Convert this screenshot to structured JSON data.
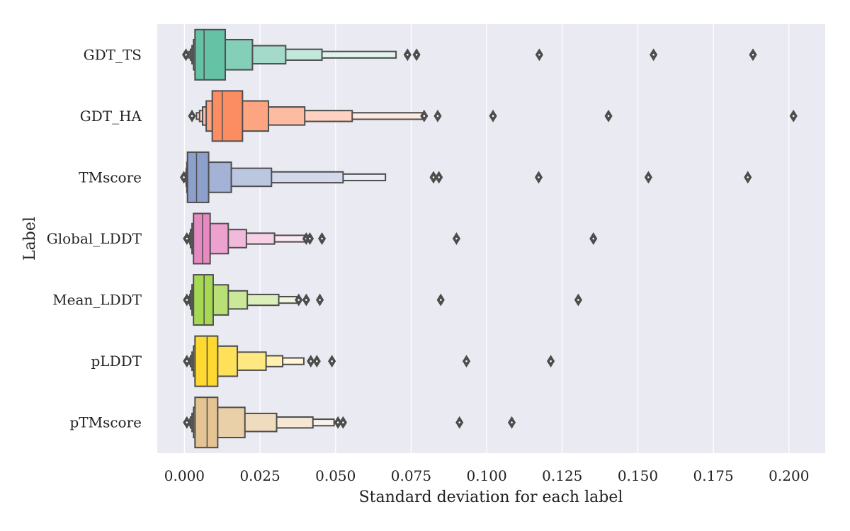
{
  "chart_data": {
    "type": "boxenplot",
    "xlabel": "Standard deviation for each label",
    "ylabel": "Label",
    "xlim": [
      -0.009,
      0.212
    ],
    "x_ticks": [
      {
        "value": 0.0,
        "label": "0.000"
      },
      {
        "value": 0.025,
        "label": "0.025"
      },
      {
        "value": 0.05,
        "label": "0.050"
      },
      {
        "value": 0.075,
        "label": "0.075"
      },
      {
        "value": 0.1,
        "label": "0.100"
      },
      {
        "value": 0.125,
        "label": "0.125"
      },
      {
        "value": 0.15,
        "label": "0.150"
      },
      {
        "value": 0.175,
        "label": "0.175"
      },
      {
        "value": 0.2,
        "label": "0.200"
      }
    ],
    "grid": true,
    "colors": {
      "background": "#eaeaf2",
      "grid": "#ffffff",
      "edge": "#4d4d4d",
      "swarm": "#ffffff"
    },
    "categories": [
      {
        "label": "GDT_TS",
        "color": "#66c2a5",
        "median": 0.0065,
        "levels": [
          {
            "lo": 0.0035,
            "hi": 0.0135
          },
          {
            "lo": 0.003,
            "hi": 0.0225
          },
          {
            "lo": 0.0025,
            "hi": 0.0335
          },
          {
            "lo": 0.002,
            "hi": 0.0455
          },
          {
            "lo": 0.0015,
            "hi": 0.07
          }
        ],
        "outliers": [
          0.0005,
          0.0738,
          0.0768,
          0.1174,
          0.1552,
          0.1881
        ]
      },
      {
        "label": "GDT_HA",
        "color": "#fc8d62",
        "median": 0.0125,
        "levels": [
          {
            "lo": 0.0092,
            "hi": 0.0192
          },
          {
            "lo": 0.0072,
            "hi": 0.0278
          },
          {
            "lo": 0.006,
            "hi": 0.0398
          },
          {
            "lo": 0.005,
            "hi": 0.0555
          },
          {
            "lo": 0.004,
            "hi": 0.079
          }
        ],
        "outliers": [
          0.0025,
          0.0793,
          0.0838,
          0.1021,
          0.1403,
          0.2015
        ]
      },
      {
        "label": "TMscore",
        "color": "#8da0cb",
        "median": 0.004,
        "levels": [
          {
            "lo": 0.001,
            "hi": 0.008
          },
          {
            "lo": 0.0008,
            "hi": 0.0155
          },
          {
            "lo": 0.0006,
            "hi": 0.0288
          },
          {
            "lo": 0.0005,
            "hi": 0.0525
          },
          {
            "lo": 0.0004,
            "hi": 0.0665
          }
        ],
        "outliers": [
          -0.0002,
          0.0824,
          0.0842,
          0.1172,
          0.1535,
          0.1864
        ]
      },
      {
        "label": "Global_LDDT",
        "color": "#e78ac3",
        "median": 0.006,
        "levels": [
          {
            "lo": 0.003,
            "hi": 0.0085
          },
          {
            "lo": 0.0025,
            "hi": 0.0145
          },
          {
            "lo": 0.002,
            "hi": 0.0205
          },
          {
            "lo": 0.0018,
            "hi": 0.0298
          },
          {
            "lo": 0.0015,
            "hi": 0.0405
          }
        ],
        "outliers": [
          0.0008,
          0.0403,
          0.0415,
          0.0455,
          0.09,
          0.1353
        ]
      },
      {
        "label": "Mean_LDDT",
        "color": "#a6d854",
        "median": 0.0065,
        "levels": [
          {
            "lo": 0.003,
            "hi": 0.0095
          },
          {
            "lo": 0.0025,
            "hi": 0.0145
          },
          {
            "lo": 0.002,
            "hi": 0.0208
          },
          {
            "lo": 0.0018,
            "hi": 0.0312
          },
          {
            "lo": 0.0015,
            "hi": 0.0375
          }
        ],
        "outliers": [
          0.0008,
          0.0378,
          0.0403,
          0.0448,
          0.0848,
          0.1303
        ]
      },
      {
        "label": "pLDDT",
        "color": "#ffd92f",
        "median": 0.0075,
        "levels": [
          {
            "lo": 0.0035,
            "hi": 0.011
          },
          {
            "lo": 0.003,
            "hi": 0.0175
          },
          {
            "lo": 0.0025,
            "hi": 0.027
          },
          {
            "lo": 0.002,
            "hi": 0.0325
          },
          {
            "lo": 0.0018,
            "hi": 0.0395
          }
        ],
        "outliers": [
          0.0008,
          0.0418,
          0.0438,
          0.0488,
          0.0933,
          0.1212
        ]
      },
      {
        "label": "pTMscore",
        "color": "#e5c494",
        "median": 0.0075,
        "levels": [
          {
            "lo": 0.0035,
            "hi": 0.011
          },
          {
            "lo": 0.003,
            "hi": 0.02
          },
          {
            "lo": 0.0025,
            "hi": 0.0305
          },
          {
            "lo": 0.002,
            "hi": 0.0425
          },
          {
            "lo": 0.0018,
            "hi": 0.0495
          }
        ],
        "outliers": [
          0.0008,
          0.0508,
          0.0525,
          0.091,
          0.1083
        ]
      }
    ]
  }
}
